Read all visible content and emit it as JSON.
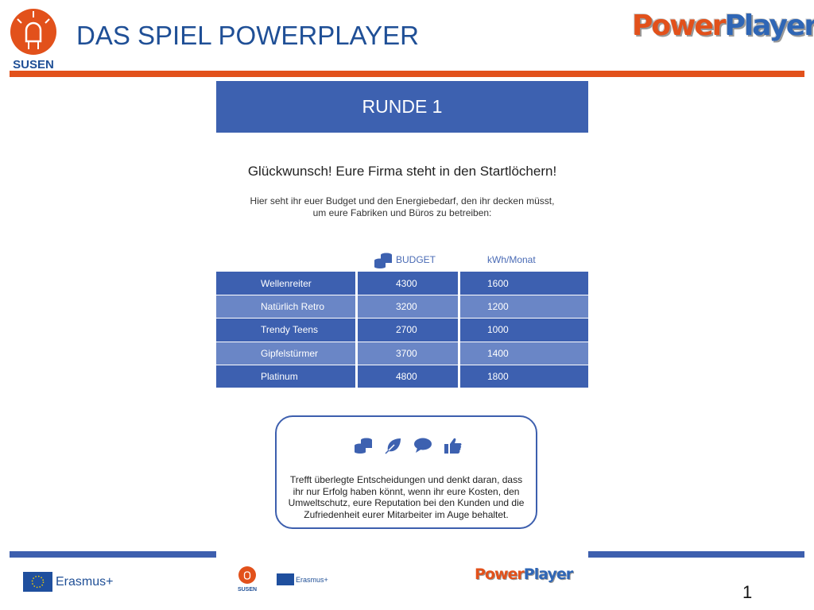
{
  "header": {
    "title": "DAS SPIEL POWERPLAYER",
    "susen_logo_text": "SUSEN",
    "powerplayer_logo": {
      "power": "Power",
      "player": "Player"
    }
  },
  "colors": {
    "accent_orange": "#e2511b",
    "primary_blue": "#3d61b0",
    "light_blue": "#6a86c6",
    "title_blue": "#1f4f96"
  },
  "round": {
    "title": "RUNDE 1"
  },
  "headline": "Glückwunsch! Eure Firma steht in den Startlöchern!",
  "intro": {
    "line1": "Hier seht ihr euer Budget und den Energiebedarf, den ihr decken müsst,",
    "line2": "um eure Fabriken und Büros zu betreiben:"
  },
  "table": {
    "columns": {
      "budget": "BUDGET",
      "kwh": "kWh/Monat",
      "budget_icon": "coins-icon"
    },
    "rows": [
      {
        "name": "Wellenreiter",
        "budget": "4300",
        "kwh": "1600"
      },
      {
        "name": "Natürlich Retro",
        "budget": "3200",
        "kwh": "1200"
      },
      {
        "name": "Trendy Teens",
        "budget": "2700",
        "kwh": "1000"
      },
      {
        "name": "Gipfelstürmer",
        "budget": "3700",
        "kwh": "1400"
      },
      {
        "name": "Platinum",
        "budget": "4800",
        "kwh": "1800"
      }
    ]
  },
  "tip": {
    "icons": [
      "coins-icon",
      "leaf-icon",
      "speech-bubble-icon",
      "thumbs-up-icon"
    ],
    "lines": [
      "Trefft überlegte Entscheidungen und denkt daran, dass",
      "ihr nur Erfolg haben könnt, wenn ihr eure Kosten, den",
      "Umweltschutz, eure Reputation bei den Kunden und die",
      "Zufriedenheit eurer Mitarbeiter im Auge behaltet."
    ]
  },
  "footer": {
    "erasmus": "Erasmus+",
    "small_susen": "SUSEN",
    "page_number": "1"
  }
}
